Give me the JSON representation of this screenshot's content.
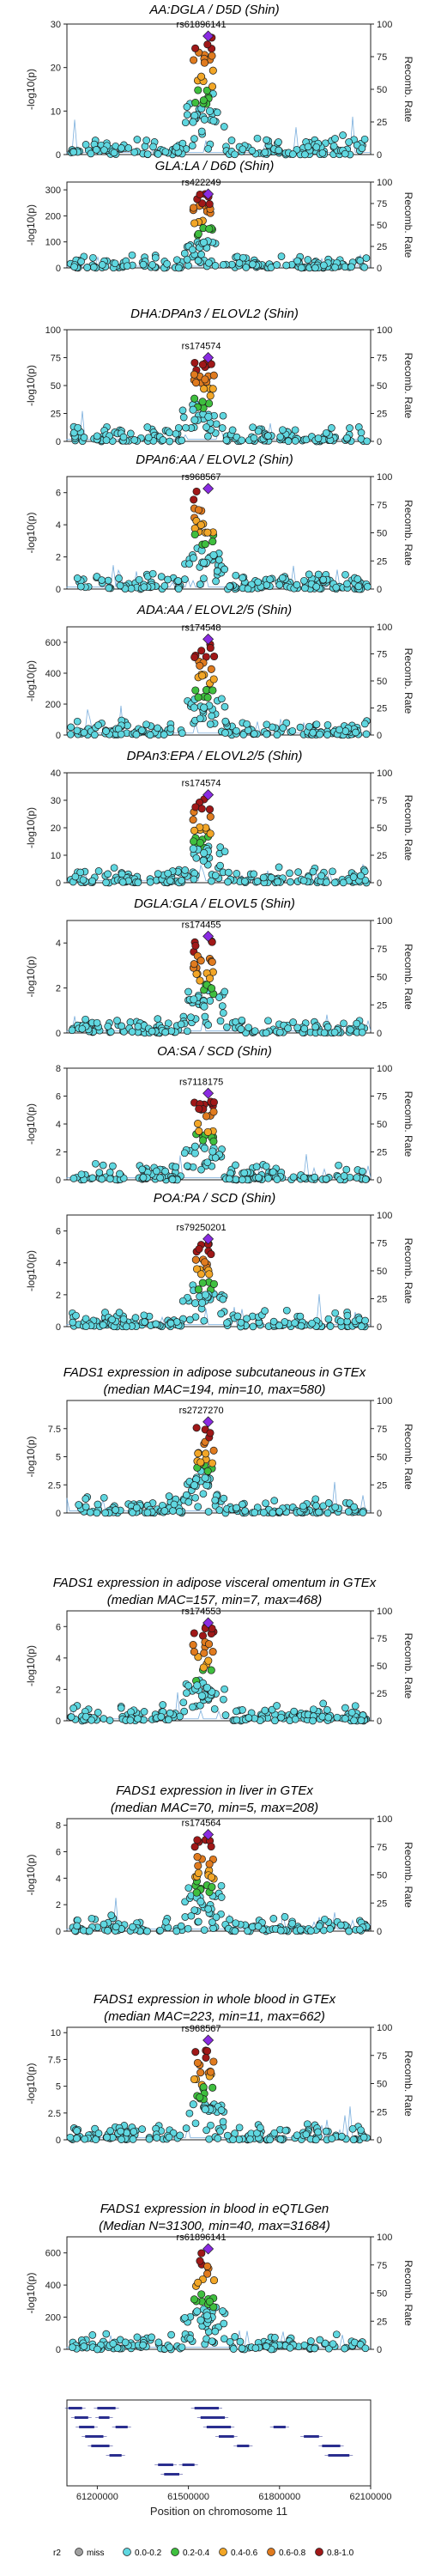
{
  "chart_data": {
    "type": "scatter",
    "x_range": [
      61100000,
      62100000
    ],
    "colors": {
      "miss": "#a0a0a0",
      "0.0-0.2": "#5fd7e0",
      "0.2-0.4": "#3fbf3f",
      "0.4-0.6": "#f2a627",
      "0.6-0.8": "#e07b1f",
      "0.8-1.0": "#a01818",
      "lead": "#8a2be2",
      "recomb": "#5b9bd5"
    },
    "panels": [
      {
        "title": "AA:DGLA / D5D (Shin)",
        "lead_snp": "rs61896141",
        "ylim": [
          0,
          30
        ],
        "yticks": [
          0,
          10,
          20,
          30
        ],
        "peak": 29
      },
      {
        "title": "GLA:LA / D6D (Shin)",
        "lead_snp": "rs422249",
        "ylim": [
          0,
          330
        ],
        "yticks": [
          0,
          100,
          200,
          300
        ],
        "peak": 300
      },
      {
        "title": "DHA:DPAn3 / ELOVL2 (Shin)",
        "lead_snp": "rs174574",
        "ylim": [
          0,
          100
        ],
        "yticks": [
          0,
          25,
          50,
          75,
          100
        ],
        "peak": 75
      },
      {
        "title": "DPAn6:AA / ELOVL2 (Shin)",
        "lead_snp": "rs968567",
        "ylim": [
          0,
          7
        ],
        "yticks": [
          0,
          2,
          4,
          6
        ],
        "peak": 6.5
      },
      {
        "title": "ADA:AA / ELOVL2/5 (Shin)",
        "lead_snp": "rs174548",
        "ylim": [
          0,
          700
        ],
        "yticks": [
          0,
          200,
          400,
          600
        ],
        "peak": 620
      },
      {
        "title": "DPAn3:EPA / ELOVL2/5 (Shin)",
        "lead_snp": "rs174574",
        "ylim": [
          0,
          40
        ],
        "yticks": [
          0,
          10,
          20,
          30,
          40
        ],
        "peak": 32
      },
      {
        "title": "DGLA:GLA / ELOVL5 (Shin)",
        "lead_snp": "rs174455",
        "ylim": [
          0,
          5
        ],
        "yticks": [
          0,
          2,
          4
        ],
        "peak": 4.3
      },
      {
        "title": "OA:SA / SCD (Shin)",
        "lead_snp": "rs7118175",
        "ylim": [
          0,
          8
        ],
        "yticks": [
          0,
          2,
          4,
          6,
          8
        ],
        "peak": 6.2
      },
      {
        "title": "POA:PA / SCD (Shin)",
        "lead_snp": "rs79250201",
        "ylim": [
          0,
          7
        ],
        "yticks": [
          0,
          2,
          4,
          6
        ],
        "peak": 5.5
      },
      {
        "title": "FADS1 expression in adipose subcutaneous in GTEx",
        "subtitle": "(median MAC=194, min=10, max=580)",
        "lead_snp": "rs2727270",
        "ylim": [
          0,
          10
        ],
        "yticks": [
          0,
          2.5,
          5,
          7.5
        ],
        "peak": 8.1
      },
      {
        "title": "FADS1 expression in adipose visceral omentum in GTEx",
        "subtitle": "(median MAC=157, min=7, max=468)",
        "lead_snp": "rs174553",
        "ylim": [
          0,
          7
        ],
        "yticks": [
          0,
          2,
          4,
          6
        ],
        "peak": 6.3
      },
      {
        "title": "FADS1 expression in liver in GTEx",
        "subtitle": "(median MAC=70, min=5, max=208)",
        "lead_snp": "rs174564",
        "ylim": [
          0,
          8.5
        ],
        "yticks": [
          0,
          2,
          4,
          6,
          8
        ],
        "peak": 7.3
      },
      {
        "title": "FADS1 expression in whole blood in GTEx",
        "subtitle": "(median MAC=223, min=11, max=662)",
        "lead_snp": "rs968567",
        "ylim": [
          0,
          10.5
        ],
        "yticks": [
          0,
          2.5,
          5,
          7.5,
          10
        ],
        "peak": 9.3
      },
      {
        "title": "FADS1 expression in blood in eQTLGen",
        "subtitle": "(Median N=31300, min=40, max=31684)",
        "lead_snp": "rs61896141",
        "ylim": [
          0,
          700
        ],
        "yticks": [
          0,
          200,
          400,
          600
        ],
        "peak": 650
      }
    ],
    "ylabel": "-log10(p)",
    "y2label": "Recomb. Rate",
    "y2ticks": [
      0,
      25,
      50,
      75,
      100
    ],
    "xlabel": "Position on chromosome 11",
    "xticks": [
      "61200000",
      "61500000",
      "61800000",
      "62100000"
    ],
    "legend": {
      "title": "r2",
      "entries": [
        "miss",
        "0.0-0.2",
        "0.2-0.4",
        "0.4-0.6",
        "0.6-0.8",
        "0.8-1.0"
      ]
    }
  }
}
